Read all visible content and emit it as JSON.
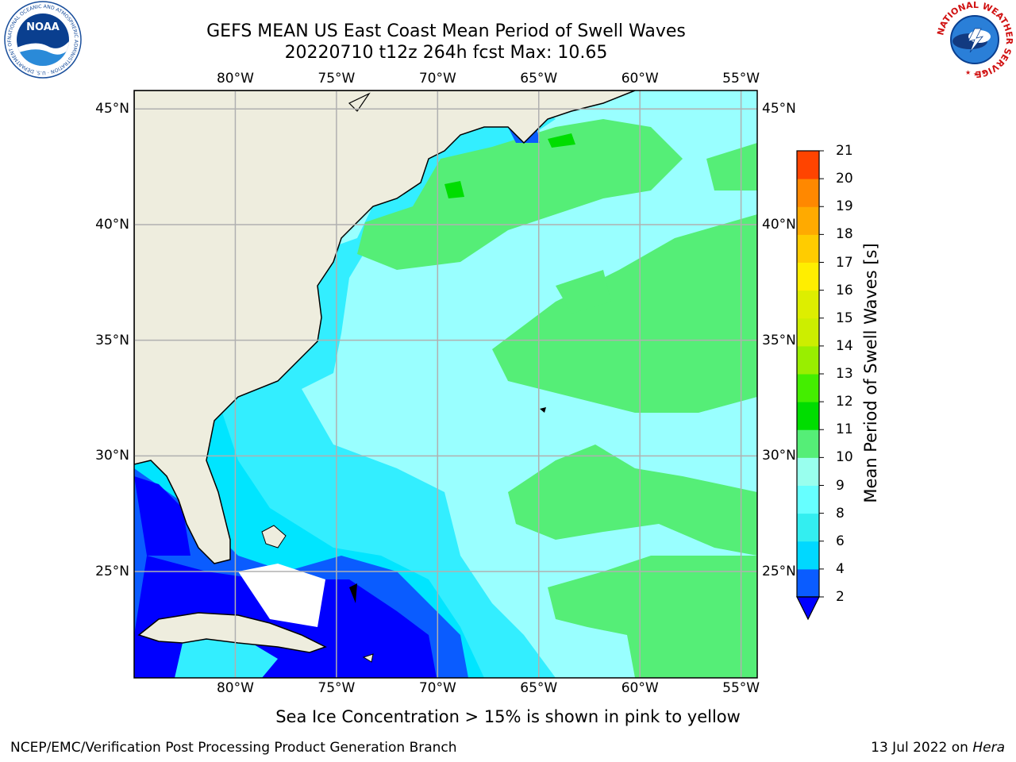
{
  "title_line1": "GEFS MEAN US East Coast Mean Period of Swell Waves",
  "title_line2": "20220710 t12z 264h fcst   Max: 10.65",
  "lon_labels": [
    "80°W",
    "75°W",
    "70°W",
    "65°W",
    "60°W",
    "55°W"
  ],
  "lon_values": [
    -80,
    -75,
    -70,
    -65,
    -60,
    -55
  ],
  "lat_labels": [
    "45°N",
    "40°N",
    "35°N",
    "30°N",
    "25°N"
  ],
  "lat_values": [
    45,
    40,
    35,
    30,
    25
  ],
  "map_extent": {
    "lon_min": -85,
    "lon_max": -54.2,
    "lat_min": 20.4,
    "lat_max": 45.8
  },
  "colorbar": {
    "label": "Mean Period of Swell Waves [s]",
    "ticks": [
      "2",
      "4",
      "6",
      "8",
      "9",
      "10",
      "11",
      "12",
      "13",
      "14",
      "15",
      "16",
      "17",
      "18",
      "19",
      "20",
      "21"
    ],
    "colors": [
      "#0a5cff",
      "#00d8ff",
      "#33eef0",
      "#66ffff",
      "#99ffee",
      "#55ee77",
      "#00dd00",
      "#44ee00",
      "#99ee00",
      "#ccee00",
      "#ddee00",
      "#ffee00",
      "#ffcc00",
      "#ffaa00",
      "#ff8800",
      "#ff4400",
      "#ff0000"
    ],
    "under_color": "#0000ff"
  },
  "colors": {
    "land": "#eeedde",
    "ocean_lt2": "#0000ff",
    "ocean_2_4": "#0a5cff",
    "ocean_4_6": "#00e5ff",
    "ocean_6_8": "#66ffff",
    "ocean_8_9": "#99ffff",
    "ocean_9_10": "#55ee77",
    "ocean_10_11": "#00dd00",
    "grid": "#b0b0b0"
  },
  "note": "Sea Ice Concentration > 15% is shown in pink to yellow",
  "credit": "NCEP/EMC/Verification Post Processing Product Generation Branch",
  "date_prefix": "13 Jul 2022 on",
  "date_machine": "Hera",
  "noaa_logo_text": "NOAA",
  "noaa_logo_ring": "NATIONAL OCEANIC AND ATMOSPHERIC ADMINISTRATION · U.S. DEPARTMENT OF COMMERCE",
  "nws_logo_ring": "NATIONAL WEATHER SERVICE"
}
